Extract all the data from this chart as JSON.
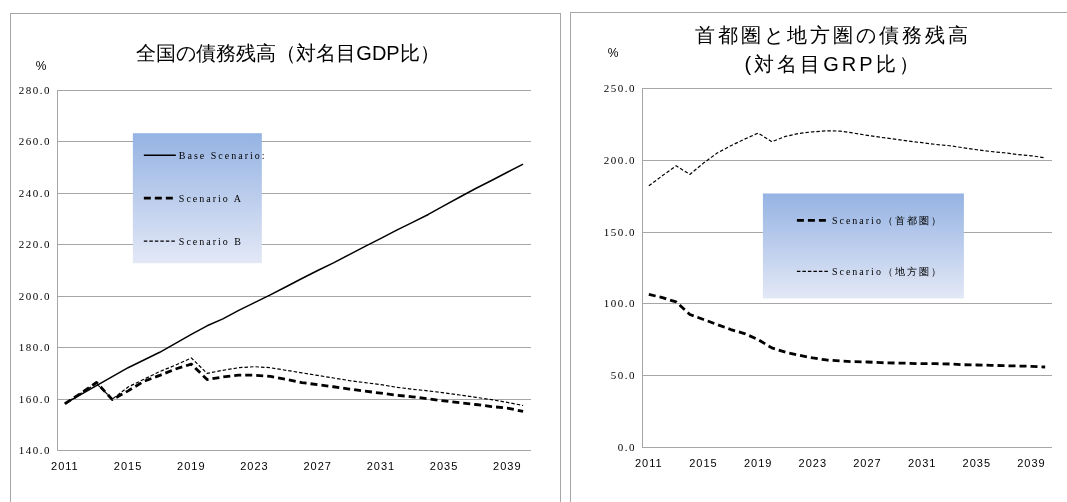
{
  "chart_data": [
    {
      "type": "line",
      "title": "全国の債務残高（対名目GDP比）",
      "ylabel": "%",
      "categories": [
        "2011",
        null,
        null,
        null,
        "2015",
        null,
        null,
        null,
        "2019",
        null,
        null,
        null,
        "2023",
        null,
        null,
        null,
        "2027",
        null,
        null,
        null,
        "2031",
        null,
        null,
        null,
        "2035",
        null,
        null,
        null,
        "2039",
        null
      ],
      "ylim": [
        140,
        280
      ],
      "yticks": [
        {
          "value": 140,
          "label": "140.0"
        },
        {
          "value": 160,
          "label": "160.0"
        },
        {
          "value": 180,
          "label": "180.0"
        },
        {
          "value": 200,
          "label": "200.0"
        },
        {
          "value": 220,
          "label": "220.0"
        },
        {
          "value": 240,
          "label": "240.0"
        },
        {
          "value": 260,
          "label": "260.0"
        },
        {
          "value": 280,
          "label": "280.0"
        }
      ],
      "grid": "y",
      "legend": "top left",
      "series": [
        {
          "name": "Base Scenario:",
          "color": "#000000",
          "line_style": "solid",
          "values": [
            158.0,
            161.5,
            165.0,
            168.5,
            172.0,
            175.0,
            178.0,
            181.5,
            185.0,
            188.3,
            191.0,
            194.3,
            197.3,
            200.3,
            203.5,
            206.7,
            209.8,
            212.8,
            216.0,
            219.2,
            222.3,
            225.5,
            228.5,
            231.6,
            235.0,
            238.4,
            241.7,
            244.8,
            248.0,
            251.2
          ]
        },
        {
          "name": "Scenario A",
          "color": "#000000",
          "line_style": "dashed",
          "values": [
            158.0,
            162.0,
            166.3,
            159.6,
            163.0,
            166.7,
            169.0,
            171.5,
            173.4,
            167.4,
            168.4,
            169.1,
            169.1,
            168.6,
            167.5,
            166.2,
            165.4,
            164.6,
            163.7,
            162.9,
            162.1,
            161.3,
            160.7,
            159.9,
            159.1,
            158.4,
            157.7,
            156.9,
            156.3,
            155.0
          ]
        },
        {
          "name": "Scenario B",
          "color": "#000000",
          "line_style": "dotted",
          "values": [
            158.0,
            162.0,
            165.8,
            159.8,
            164.5,
            167.5,
            170.5,
            173.0,
            175.8,
            169.8,
            171.0,
            172.0,
            172.4,
            172.0,
            171.0,
            170.0,
            169.0,
            168.0,
            167.0,
            166.2,
            165.4,
            164.4,
            163.6,
            163.0,
            162.2,
            161.4,
            160.5,
            159.6,
            158.5,
            157.3
          ]
        }
      ]
    },
    {
      "type": "line",
      "title": "首都圏と地方圏の債務残高\n(対名目GRP比）",
      "ylabel": "%",
      "categories": [
        "2011",
        null,
        null,
        null,
        "2015",
        null,
        null,
        null,
        "2019",
        null,
        null,
        null,
        "2023",
        null,
        null,
        null,
        "2027",
        null,
        null,
        null,
        "2031",
        null,
        null,
        null,
        "2035",
        null,
        null,
        null,
        "2039",
        null
      ],
      "ylim": [
        0,
        250
      ],
      "yticks": [
        {
          "value": 0,
          "label": "0.0"
        },
        {
          "value": 50,
          "label": "50.0"
        },
        {
          "value": 100,
          "label": "100.0"
        },
        {
          "value": 150,
          "label": "150.0"
        },
        {
          "value": 200,
          "label": "200.0"
        },
        {
          "value": 250,
          "label": "250.0"
        }
      ],
      "grid": "y",
      "legend": "center",
      "series": [
        {
          "name": "Scenario（首都圏）",
          "color": "#000000",
          "line_style": "dashed",
          "values": [
            106.3,
            104.0,
            101.0,
            92.3,
            88.8,
            85.3,
            81.8,
            79.0,
            74.8,
            69.0,
            66.0,
            63.9,
            62.0,
            60.6,
            59.9,
            59.4,
            59.2,
            58.7,
            58.5,
            58.3,
            58.0,
            58.0,
            57.8,
            57.3,
            57.1,
            56.9,
            56.6,
            56.4,
            56.2,
            55.7
          ]
        },
        {
          "name": "Scenario（地方圏）",
          "color": "#000000",
          "line_style": "dotted",
          "values": [
            181.9,
            189.0,
            195.8,
            189.8,
            197.7,
            204.7,
            209.8,
            214.4,
            218.6,
            212.6,
            216.3,
            218.4,
            219.5,
            220.2,
            220.0,
            218.6,
            217.0,
            215.6,
            214.4,
            213.0,
            211.9,
            210.7,
            209.8,
            208.4,
            207.0,
            205.8,
            204.9,
            203.7,
            202.8,
            201.4
          ]
        }
      ]
    }
  ]
}
